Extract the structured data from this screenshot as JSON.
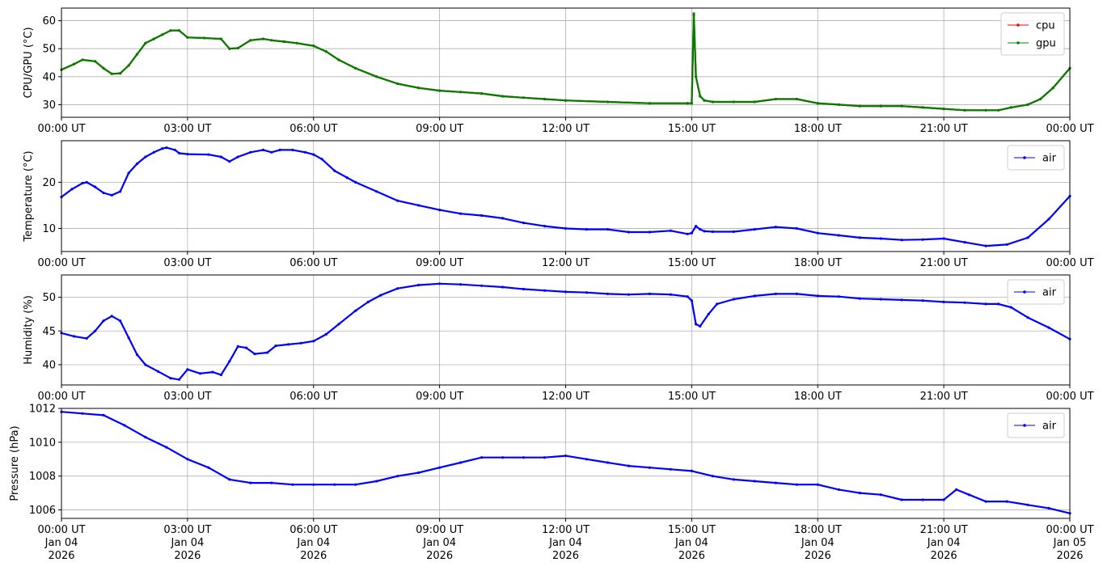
{
  "chart_data": [
    {
      "type": "line",
      "ylabel": "CPU/GPU (°C)",
      "ylim": [
        25.5,
        64.5
      ],
      "yticks": [
        30,
        40,
        50,
        60
      ],
      "xlim_hours": [
        0,
        24
      ],
      "xticks": [
        "00:00 UT",
        "03:00 UT",
        "06:00 UT",
        "09:00 UT",
        "12:00 UT",
        "15:00 UT",
        "18:00 UT",
        "21:00 UT",
        "00:00 UT"
      ],
      "grid": true,
      "legend": "top-right",
      "series": [
        {
          "name": "cpu",
          "color": "#ff0000",
          "x": [
            0,
            0.3,
            0.5,
            0.8,
            1.0,
            1.2,
            1.4,
            1.6,
            1.8,
            2.0,
            2.2,
            2.4,
            2.6,
            2.8,
            3.0,
            3.4,
            3.8,
            4.0,
            4.2,
            4.5,
            4.8,
            5.0,
            5.3,
            5.6,
            6.0,
            6.3,
            6.6,
            7.0,
            7.5,
            8.0,
            8.5,
            9.0,
            9.5,
            10.0,
            10.5,
            11.0,
            11.5,
            12.0,
            13.0,
            14.0,
            14.9,
            15.0,
            15.05,
            15.1,
            15.2,
            15.3,
            15.5,
            16.0,
            16.5,
            17.0,
            17.5,
            18.0,
            18.5,
            19.0,
            19.5,
            20.0,
            20.5,
            21.0,
            21.5,
            22.0,
            22.3,
            22.6,
            23.0,
            23.3,
            23.6,
            24.0
          ],
          "values": [
            42.5,
            44.5,
            46,
            45.5,
            43,
            41,
            41.2,
            44,
            48,
            52,
            53.5,
            55,
            56.5,
            56.5,
            54,
            53.8,
            53.5,
            50,
            50.2,
            53,
            53.5,
            53,
            52.5,
            52,
            51,
            49,
            46,
            43,
            40,
            37.5,
            36,
            35,
            34.5,
            34,
            33,
            32.5,
            32,
            31.5,
            31,
            30.5,
            30.5,
            30.5,
            62,
            40,
            33,
            31.5,
            31,
            31,
            31,
            32,
            32,
            30.5,
            30,
            29.5,
            29.5,
            29.5,
            29,
            28.5,
            28,
            28,
            28,
            29,
            30,
            32,
            36,
            43
          ]
        },
        {
          "name": "gpu",
          "color": "#008000",
          "x": [
            0,
            0.3,
            0.5,
            0.8,
            1.0,
            1.2,
            1.4,
            1.6,
            1.8,
            2.0,
            2.2,
            2.4,
            2.6,
            2.8,
            3.0,
            3.4,
            3.8,
            4.0,
            4.2,
            4.5,
            4.8,
            5.0,
            5.3,
            5.6,
            6.0,
            6.3,
            6.6,
            7.0,
            7.5,
            8.0,
            8.5,
            9.0,
            9.5,
            10.0,
            10.5,
            11.0,
            11.5,
            12.0,
            13.0,
            14.0,
            14.9,
            15.0,
            15.05,
            15.1,
            15.2,
            15.3,
            15.5,
            16.0,
            16.5,
            17.0,
            17.5,
            18.0,
            18.5,
            19.0,
            19.5,
            20.0,
            20.5,
            21.0,
            21.5,
            22.0,
            22.3,
            22.6,
            23.0,
            23.3,
            23.6,
            24.0
          ],
          "values": [
            42.5,
            44.5,
            46,
            45.5,
            43,
            41,
            41.2,
            44,
            48,
            52,
            53.5,
            55,
            56.5,
            56.5,
            54,
            53.8,
            53.5,
            50,
            50.2,
            53,
            53.5,
            53,
            52.5,
            52,
            51,
            49,
            46,
            43,
            40,
            37.5,
            36,
            35,
            34.5,
            34,
            33,
            32.5,
            32,
            31.5,
            31,
            30.5,
            30.5,
            30.5,
            62.5,
            40,
            33,
            31.5,
            31,
            31,
            31,
            32,
            32,
            30.5,
            30,
            29.5,
            29.5,
            29.5,
            29,
            28.5,
            28,
            28,
            28,
            29,
            30,
            32,
            36,
            43
          ]
        }
      ]
    },
    {
      "type": "line",
      "ylabel": "Temperature (°C)",
      "ylim": [
        5,
        29
      ],
      "yticks": [
        10,
        20
      ],
      "xlim_hours": [
        0,
        24
      ],
      "xticks": [
        "00:00 UT",
        "03:00 UT",
        "06:00 UT",
        "09:00 UT",
        "12:00 UT",
        "15:00 UT",
        "18:00 UT",
        "21:00 UT",
        "00:00 UT"
      ],
      "grid": true,
      "legend": "top-right",
      "series": [
        {
          "name": "air",
          "color": "#0000ff",
          "x": [
            0,
            0.25,
            0.5,
            0.6,
            0.8,
            1.0,
            1.2,
            1.4,
            1.6,
            1.8,
            2.0,
            2.2,
            2.4,
            2.5,
            2.7,
            2.8,
            3.0,
            3.5,
            3.8,
            4.0,
            4.2,
            4.5,
            4.8,
            5.0,
            5.2,
            5.5,
            5.8,
            6.0,
            6.2,
            6.5,
            6.8,
            7.0,
            7.5,
            8.0,
            8.5,
            9.0,
            9.5,
            10.0,
            10.5,
            11.0,
            11.5,
            12.0,
            12.5,
            13.0,
            13.5,
            14.0,
            14.5,
            14.9,
            15.0,
            15.1,
            15.2,
            15.3,
            15.5,
            16.0,
            16.5,
            17.0,
            17.5,
            18.0,
            18.5,
            19.0,
            19.5,
            20.0,
            20.5,
            21.0,
            21.5,
            22.0,
            22.5,
            23.0,
            23.5,
            24.0
          ],
          "values": [
            16.8,
            18.5,
            19.8,
            20,
            19,
            17.7,
            17.2,
            18,
            22,
            24,
            25.5,
            26.5,
            27.3,
            27.5,
            27,
            26.3,
            26.1,
            26,
            25.5,
            24.5,
            25.5,
            26.5,
            27,
            26.5,
            27,
            27,
            26.5,
            26,
            25,
            22.5,
            21,
            20,
            18,
            16,
            15,
            14,
            13.2,
            12.8,
            12.2,
            11.2,
            10.5,
            10,
            9.8,
            9.8,
            9.2,
            9.2,
            9.5,
            8.8,
            9,
            10.5,
            9.8,
            9.4,
            9.3,
            9.3,
            9.8,
            10.3,
            10,
            9,
            8.5,
            8,
            7.8,
            7.5,
            7.6,
            7.8,
            7,
            6.2,
            6.5,
            8,
            12,
            17
          ]
        }
      ]
    },
    {
      "type": "line",
      "ylabel": "Humidity (%)",
      "ylim": [
        37,
        53.3
      ],
      "yticks": [
        40,
        45,
        50
      ],
      "xlim_hours": [
        0,
        24
      ],
      "xticks": [
        "00:00 UT",
        "03:00 UT",
        "06:00 UT",
        "09:00 UT",
        "12:00 UT",
        "15:00 UT",
        "18:00 UT",
        "21:00 UT",
        "00:00 UT"
      ],
      "grid": true,
      "legend": "top-right",
      "series": [
        {
          "name": "air",
          "color": "#0000ff",
          "x": [
            0,
            0.3,
            0.6,
            0.8,
            1.0,
            1.2,
            1.4,
            1.6,
            1.8,
            2.0,
            2.3,
            2.6,
            2.8,
            3.0,
            3.3,
            3.6,
            3.8,
            4.0,
            4.2,
            4.4,
            4.6,
            4.9,
            5.1,
            5.4,
            5.7,
            6.0,
            6.3,
            6.6,
            7.0,
            7.3,
            7.6,
            8.0,
            8.5,
            9.0,
            9.5,
            10.0,
            10.5,
            11.0,
            11.5,
            12.0,
            12.5,
            13.0,
            13.5,
            14.0,
            14.5,
            14.9,
            15.0,
            15.1,
            15.2,
            15.4,
            15.6,
            16.0,
            16.5,
            17.0,
            17.5,
            18.0,
            18.5,
            19.0,
            19.5,
            20.0,
            20.5,
            21.0,
            21.5,
            22.0,
            22.3,
            22.6,
            23.0,
            23.5,
            24.0
          ],
          "values": [
            44.7,
            44.2,
            43.9,
            45,
            46.5,
            47.2,
            46.5,
            44,
            41.5,
            40,
            39,
            38,
            37.8,
            39.3,
            38.7,
            38.9,
            38.5,
            40.5,
            42.7,
            42.5,
            41.6,
            41.8,
            42.8,
            43,
            43.2,
            43.5,
            44.5,
            46,
            48,
            49.3,
            50.3,
            51.3,
            51.8,
            52,
            51.9,
            51.7,
            51.5,
            51.2,
            51,
            50.8,
            50.7,
            50.5,
            50.4,
            50.5,
            50.4,
            50.1,
            49.5,
            46,
            45.7,
            47.5,
            49,
            49.7,
            50.2,
            50.5,
            50.5,
            50.2,
            50.1,
            49.8,
            49.7,
            49.6,
            49.5,
            49.3,
            49.2,
            49,
            49,
            48.5,
            47,
            45.5,
            43.8
          ]
        }
      ]
    },
    {
      "type": "line",
      "ylabel": "Pressure (hPa)",
      "ylim": [
        1005.5,
        1012
      ],
      "yticks": [
        1006,
        1008,
        1010,
        1012
      ],
      "xlim_hours": [
        0,
        24
      ],
      "xticks": [
        "00:00 UT",
        "03:00 UT",
        "06:00 UT",
        "09:00 UT",
        "12:00 UT",
        "15:00 UT",
        "18:00 UT",
        "21:00 UT",
        "00:00 UT"
      ],
      "xticks_date": [
        "Jan 04",
        "Jan 04",
        "Jan 04",
        "Jan 04",
        "Jan 04",
        "Jan 04",
        "Jan 04",
        "Jan 04",
        "Jan 05"
      ],
      "xticks_year": [
        "2026",
        "2026",
        "2026",
        "2026",
        "2026",
        "2026",
        "2026",
        "2026",
        "2026"
      ],
      "grid": true,
      "legend": "top-right",
      "series": [
        {
          "name": "air",
          "color": "#0000ff",
          "x": [
            0,
            0.5,
            1.0,
            1.5,
            2.0,
            2.5,
            3.0,
            3.5,
            4.0,
            4.5,
            5.0,
            5.5,
            6.0,
            6.5,
            7.0,
            7.5,
            8.0,
            8.5,
            9.0,
            9.5,
            10.0,
            10.5,
            11.0,
            11.5,
            12.0,
            12.5,
            13.0,
            13.5,
            14.0,
            14.5,
            15.0,
            15.5,
            16.0,
            16.5,
            17.0,
            17.5,
            18.0,
            18.5,
            19.0,
            19.5,
            20.0,
            20.5,
            21.0,
            21.3,
            21.6,
            22.0,
            22.5,
            23.0,
            23.5,
            24.0
          ],
          "values": [
            1011.8,
            1011.7,
            1011.6,
            1011,
            1010.3,
            1009.7,
            1009,
            1008.5,
            1007.8,
            1007.6,
            1007.6,
            1007.5,
            1007.5,
            1007.5,
            1007.5,
            1007.7,
            1008,
            1008.2,
            1008.5,
            1008.8,
            1009.1,
            1009.1,
            1009.1,
            1009.1,
            1009.2,
            1009,
            1008.8,
            1008.6,
            1008.5,
            1008.4,
            1008.3,
            1008,
            1007.8,
            1007.7,
            1007.6,
            1007.5,
            1007.5,
            1007.2,
            1007,
            1006.9,
            1006.6,
            1006.6,
            1006.6,
            1007.2,
            1006.9,
            1006.5,
            1006.5,
            1006.3,
            1006.1,
            1005.8
          ]
        }
      ]
    }
  ]
}
